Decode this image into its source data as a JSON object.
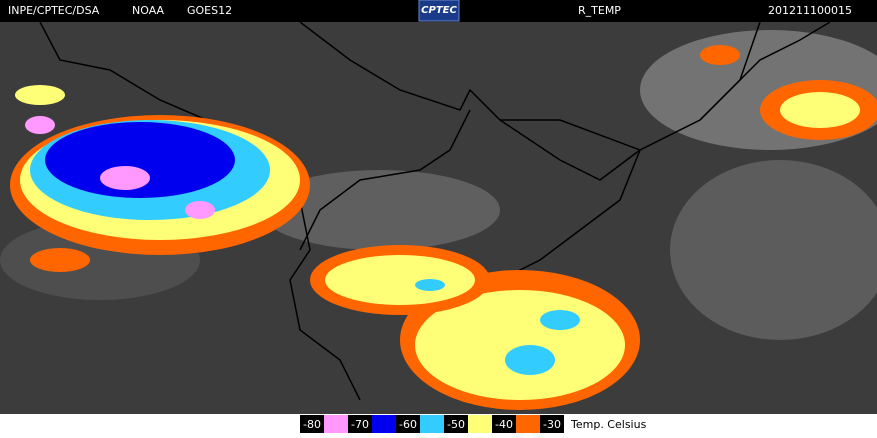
{
  "header": {
    "source": "INPE/CPTEC/DSA",
    "agency": "NOAA",
    "satellite": "GOES12",
    "logo": "CPTEC",
    "product": "R_TEMP",
    "timestamp": "201211100015"
  },
  "legend": {
    "ticks": [
      "-80",
      "-70",
      "-60",
      "-50",
      "-40",
      "-30"
    ],
    "colors": [
      "#ff99ff",
      "#0000ee",
      "#33ccff",
      "#ffff77",
      "#ff6600"
    ],
    "unit": "Temp. Celsius"
  }
}
